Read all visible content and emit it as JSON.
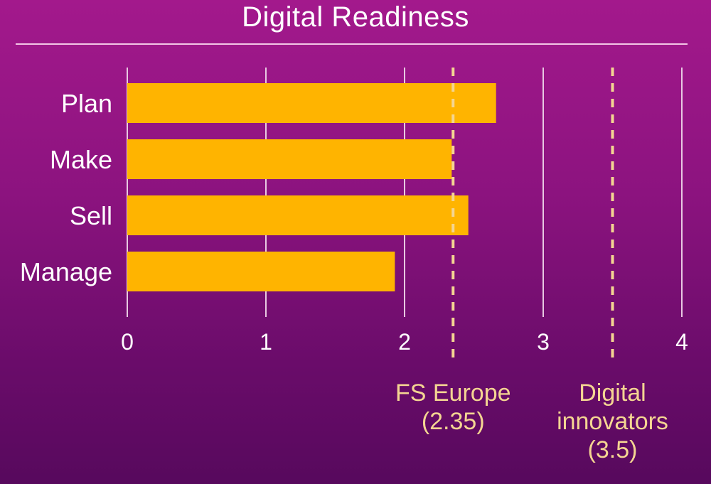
{
  "chart_data": {
    "type": "bar",
    "orientation": "horizontal",
    "title": "Digital Readiness",
    "categories": [
      "Plan",
      "Make",
      "Sell",
      "Manage"
    ],
    "values": [
      2.66,
      2.34,
      2.46,
      1.93
    ],
    "xlim": [
      0,
      4
    ],
    "xticks": [
      0,
      1,
      2,
      3,
      4
    ],
    "grid": true,
    "colors": {
      "bar": "#ffb400",
      "reference": "#f4d592",
      "grid": "#e8c9e2",
      "text": "#ffffff",
      "background": "#8c137f"
    },
    "reference_lines": [
      {
        "label": [
          "FS Europe",
          "(2.35)"
        ],
        "value": 2.35
      },
      {
        "label": [
          "Digital",
          "innovators",
          "(3.5)"
        ],
        "value": 3.5
      }
    ]
  }
}
